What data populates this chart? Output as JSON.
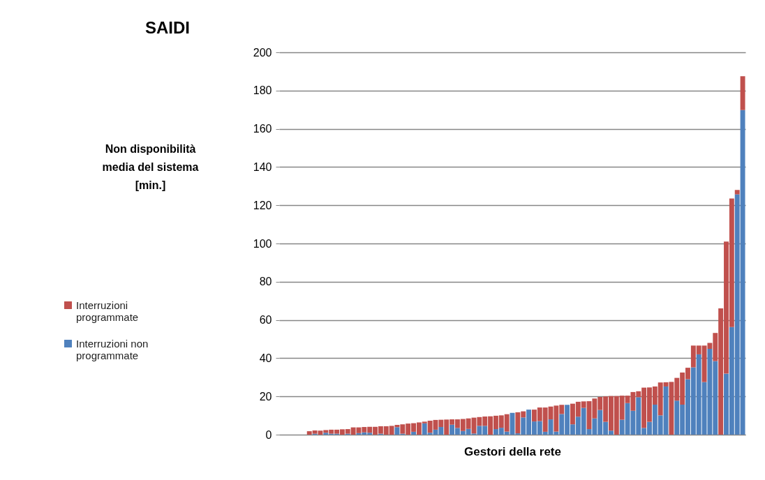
{
  "chart_data": {
    "type": "bar",
    "title": "SAIDI",
    "xlabel": "Gestori della rete",
    "ylabel": "Non disponibilità media del sistema [min.]",
    "categories": [
      null,
      null,
      null,
      null,
      null,
      null,
      null,
      null,
      null,
      null,
      null,
      null,
      null,
      null,
      null,
      null,
      null,
      null,
      null,
      null,
      null,
      null,
      null,
      null,
      null,
      null,
      null,
      null,
      null,
      null,
      null,
      null,
      null,
      null,
      null,
      null,
      null,
      null,
      null,
      null,
      null,
      null,
      null,
      null,
      null,
      null,
      null,
      null,
      null,
      null,
      null,
      null,
      null,
      null,
      null,
      null,
      null,
      null,
      null,
      null,
      null,
      null,
      null,
      null,
      null,
      null,
      null,
      null,
      null,
      null,
      null,
      null,
      null,
      null,
      null,
      null,
      null,
      null,
      null,
      null,
      null,
      null,
      null,
      null,
      null
    ],
    "stacked": true,
    "series": [
      {
        "name": "Interruzioni non programmate",
        "color": "#4f81bd",
        "values": [
          0,
          0,
          0,
          0,
          0,
          0,
          0.5,
          0,
          1.0,
          0.5,
          0.5,
          0,
          0.5,
          0,
          0.8,
          1.2,
          1.0,
          0,
          0.5,
          0,
          0,
          3.9,
          0.5,
          0,
          1.5,
          0,
          5.9,
          1.0,
          2.6,
          4.0,
          0,
          5.2,
          3.5,
          1.9,
          3.0,
          0.6,
          4.6,
          4.6,
          0,
          2.9,
          3.6,
          1.6,
          11.4,
          0.7,
          9.0,
          13.1,
          6.9,
          7.1,
          1.5,
          8.0,
          1.6,
          10.8,
          15.6,
          5.4,
          9.4,
          14.0,
          2.9,
          8.5,
          12.9,
          6.7,
          2.1,
          0,
          7.8,
          16.5,
          12.5,
          19.6,
          3.5,
          6.7,
          15.7,
          10.1,
          25.2,
          0,
          17.8,
          15.7,
          29.0,
          35.2,
          42.0,
          27.5,
          44.9,
          38.5,
          0,
          31.9,
          56.3,
          125.7,
          169.8
        ]
      },
      {
        "name": "Interruzioni programmate",
        "color": "#c0504d",
        "values": [
          0,
          0,
          0,
          0,
          0,
          1.8,
          1.7,
          2.1,
          1.4,
          2.1,
          2.1,
          2.8,
          2.4,
          3.8,
          3.0,
          2.8,
          3.1,
          4.1,
          3.9,
          4.4,
          4.6,
          1.2,
          4.9,
          5.8,
          4.5,
          6.4,
          0.9,
          6.3,
          5.1,
          3.8,
          7.9,
          2.8,
          4.5,
          6.3,
          5.5,
          8.3,
          4.6,
          4.9,
          9.6,
          7.0,
          6.5,
          9.1,
          0,
          11.0,
          3.2,
          0,
          6.2,
          7.1,
          12.7,
          6.7,
          13.6,
          4.8,
          0,
          10.8,
          7.8,
          3.4,
          14.6,
          10.4,
          6.8,
          13.3,
          18.1,
          20.2,
          12.6,
          3.9,
          9.8,
          3.1,
          21.1,
          18.0,
          9.5,
          17.2,
          2.2,
          27.6,
          11.9,
          16.8,
          6.0,
          11.4,
          4.6,
          19.1,
          3.1,
          14.7,
          66.1,
          69.1,
          67.2,
          2.3,
          17.7
        ]
      }
    ],
    "ylim": [
      0,
      200
    ],
    "yticks": [
      0,
      20,
      40,
      60,
      80,
      100,
      120,
      140,
      160,
      180,
      200
    ],
    "grid": "y",
    "legend": "left",
    "tick_labels": "y"
  }
}
